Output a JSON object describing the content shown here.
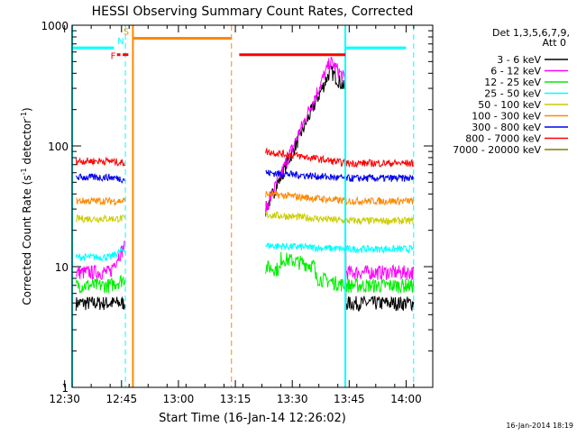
{
  "chart_data": {
    "type": "line",
    "title": "HESSI Observing Summary Count Rates, Corrected",
    "xlabel": "Start Time (16-Jan-14 12:26:02)",
    "ylabel": "Corrected Count Rate (s",
    "ylabel_sup1": "-1",
    "ylabel_mid": " detector",
    "ylabel_sup2": "-1",
    "ylabel_end": ")",
    "ylog": true,
    "xlim_minutes": [
      12.533,
      14.117
    ],
    "xlim": [
      "12:26",
      "14:07"
    ],
    "ylim": [
      1,
      1000
    ],
    "x_ticks": [
      "12:30",
      "12:45",
      "13:00",
      "13:15",
      "13:30",
      "13:45",
      "14:00"
    ],
    "x_tick_hours": [
      12.5,
      12.75,
      13.0,
      13.25,
      13.5,
      13.75,
      14.0
    ],
    "y_ticks": [
      1,
      10,
      100,
      1000
    ],
    "y_tick_labels": [
      "1",
      "10",
      "100",
      "1000"
    ],
    "legend": {
      "header1": "Det 1,3,5,6,7,9,",
      "header2": "Att 0",
      "placement": "top-right"
    },
    "series": [
      {
        "name": "3 - 6 keV",
        "color": "#000000",
        "pre": 5,
        "pre_end": 5,
        "post_start": 0,
        "post": 5
      },
      {
        "name": "6 - 12 keV",
        "color": "#ff00ff",
        "pre": 9,
        "pre_end": 15,
        "post_start": 0,
        "post": 9
      },
      {
        "name": "12 - 25 keV",
        "color": "#00ee00",
        "pre": 7,
        "pre_end": 8,
        "post_start": 10,
        "post": 7
      },
      {
        "name": "25 - 50 keV",
        "color": "#00ffff",
        "pre": 12,
        "pre_end": 14,
        "post_start": 15,
        "post": 14
      },
      {
        "name": "50 - 100 keV",
        "color": "#cccc00",
        "pre": 25,
        "pre_end": 25,
        "post_start": 27,
        "post": 24
      },
      {
        "name": "100 - 300 keV",
        "color": "#ff8800",
        "pre": 35,
        "pre_end": 35,
        "post_start": 40,
        "post": 35
      },
      {
        "name": "300 - 800 keV",
        "color": "#0000ee",
        "pre": 55,
        "pre_end": 53,
        "post_start": 60,
        "post": 54
      },
      {
        "name": "800 - 7000 keV",
        "color": "#ff0000",
        "pre": 75,
        "pre_end": 72,
        "post_start": 90,
        "post": 72
      },
      {
        "name": "7000 - 20000 keV",
        "color": "#808000",
        "pre": null,
        "pre_end": null,
        "post_start": null,
        "post": null
      }
    ],
    "flare": {
      "rise_start": 13.383,
      "peak": 13.667,
      "end": 13.733,
      "peak_6_12": 500,
      "peak_3_6": 420
    },
    "gaps": [
      {
        "start": 12.767,
        "end": 13.383
      }
    ],
    "flags": [
      {
        "label": "F",
        "color": "#ff0000"
      },
      {
        "label": "N",
        "color": "#00ffff"
      },
      {
        "label": "S",
        "color": "#ff8800"
      }
    ],
    "flag_bars": [
      {
        "color": "#00ffff",
        "start": 12.533,
        "end": 12.717,
        "level": 650
      },
      {
        "color": "#ff0000",
        "start": 12.73,
        "end": 12.745,
        "level": 570
      },
      {
        "color": "#ff0000",
        "start": 12.755,
        "end": 12.78,
        "level": 570
      },
      {
        "color": "#ff8800",
        "start": 12.8,
        "end": 13.233,
        "level": 780
      },
      {
        "color": "#ff0000",
        "start": 13.267,
        "end": 13.733,
        "level": 570
      },
      {
        "color": "#00ffff",
        "start": 13.733,
        "end": 14.0,
        "level": 650
      }
    ],
    "vlines": [
      {
        "x": 12.533,
        "color": "#00ffff",
        "style": "solid"
      },
      {
        "x": 12.767,
        "color": "#00ffff",
        "style": "dashed"
      },
      {
        "x": 12.8,
        "color": "#ff8800",
        "style": "solid"
      },
      {
        "x": 13.233,
        "color": "#ff8800",
        "style": "dashed"
      },
      {
        "x": 13.733,
        "color": "#00ffff",
        "style": "solid"
      },
      {
        "x": 14.033,
        "color": "#00ffff",
        "style": "dashed"
      }
    ]
  },
  "footer": {
    "date": "16-Jan-2014 18:19"
  }
}
